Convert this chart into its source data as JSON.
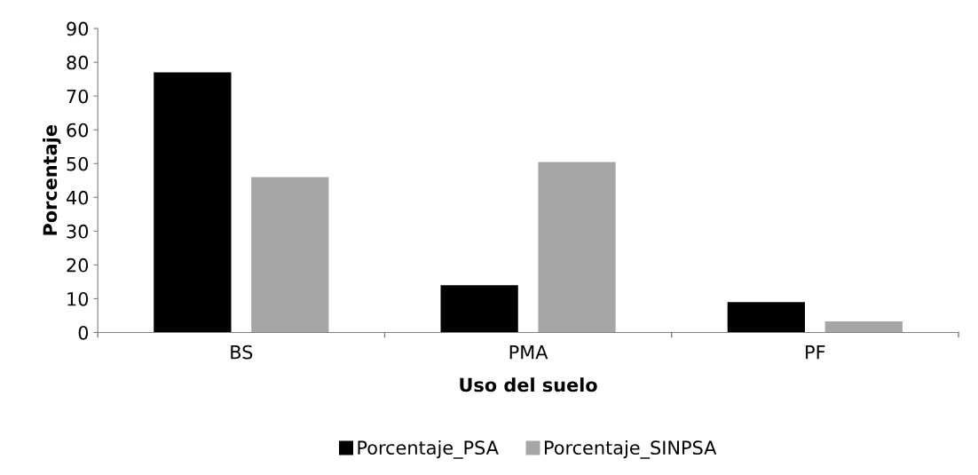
{
  "chart_data": {
    "type": "bar",
    "xlabel": "Uso del suelo",
    "ylabel": "Porcentaje",
    "categories": [
      "BS",
      "PMA",
      "PF"
    ],
    "series": [
      {
        "name": "Porcentaje_PSA",
        "color": "#000000",
        "values": [
          77,
          14,
          9
        ]
      },
      {
        "name": "Porcentaje_SINPSA",
        "color": "#a6a6a6",
        "values": [
          46,
          50.5,
          3.3
        ]
      }
    ],
    "ylim": [
      0,
      90
    ],
    "yticks": [
      0,
      10,
      20,
      30,
      40,
      50,
      60,
      70,
      80,
      90
    ],
    "grid": false,
    "legend": "bottom"
  }
}
